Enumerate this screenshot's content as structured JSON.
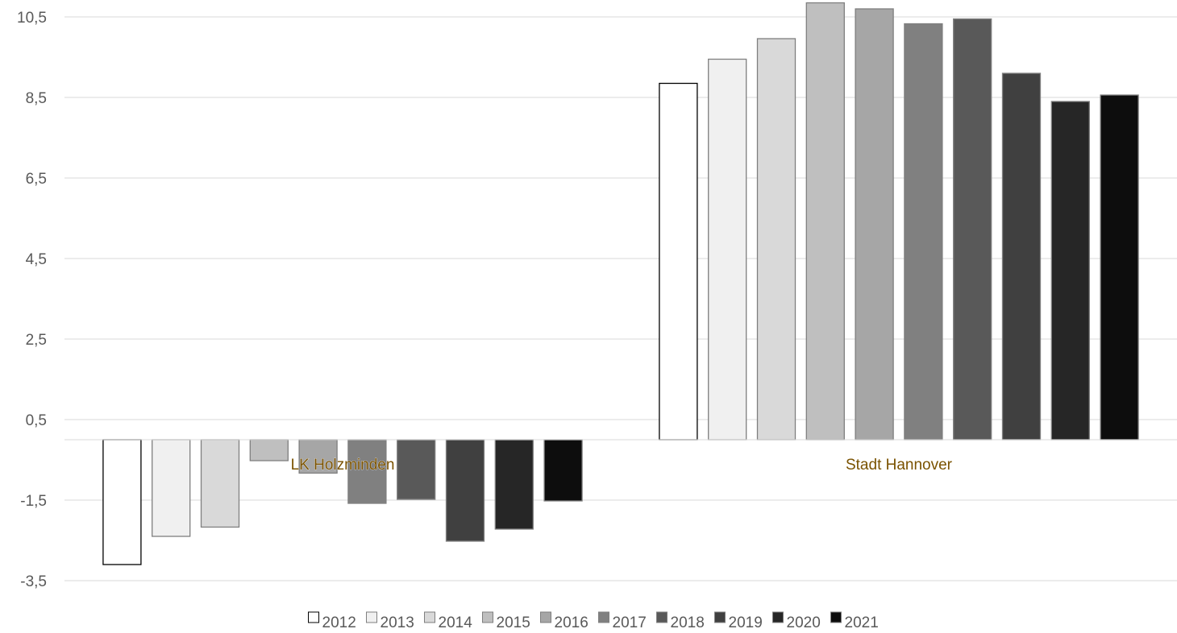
{
  "chart_data": {
    "type": "bar",
    "categories": [
      "LK Holzminden",
      "Stadt Hannover"
    ],
    "series": [
      {
        "name": "2012",
        "color": "#ffffff",
        "values": [
          -3.1,
          8.85
        ]
      },
      {
        "name": "2013",
        "color": "#f0f0f0",
        "values": [
          -2.4,
          9.45
        ]
      },
      {
        "name": "2014",
        "color": "#d9d9d9",
        "values": [
          -2.17,
          9.96
        ]
      },
      {
        "name": "2015",
        "color": "#bfbfbf",
        "values": [
          -0.52,
          10.85
        ]
      },
      {
        "name": "2016",
        "color": "#a6a6a6",
        "values": [
          -0.83,
          10.7
        ]
      },
      {
        "name": "2017",
        "color": "#808080",
        "values": [
          -1.58,
          10.33
        ]
      },
      {
        "name": "2018",
        "color": "#595959",
        "values": [
          -1.48,
          10.45
        ]
      },
      {
        "name": "2019",
        "color": "#404040",
        "values": [
          -2.52,
          9.1
        ]
      },
      {
        "name": "2020",
        "color": "#262626",
        "values": [
          -2.22,
          8.4
        ]
      },
      {
        "name": "2021",
        "color": "#0d0d0d",
        "values": [
          -1.52,
          8.56
        ]
      }
    ],
    "yticks": [
      "10,5",
      "8,5",
      "6,5",
      "4,5",
      "2,5",
      "0,5",
      "-1,5",
      "-3,5"
    ],
    "ytick_values": [
      10.5,
      8.5,
      6.5,
      4.5,
      2.5,
      0.5,
      -1.5,
      -3.5
    ],
    "ylim": [
      -3.5,
      10.5
    ],
    "grid": true,
    "legend_position": "bottom",
    "title": "",
    "xlabel": "",
    "ylabel": ""
  }
}
